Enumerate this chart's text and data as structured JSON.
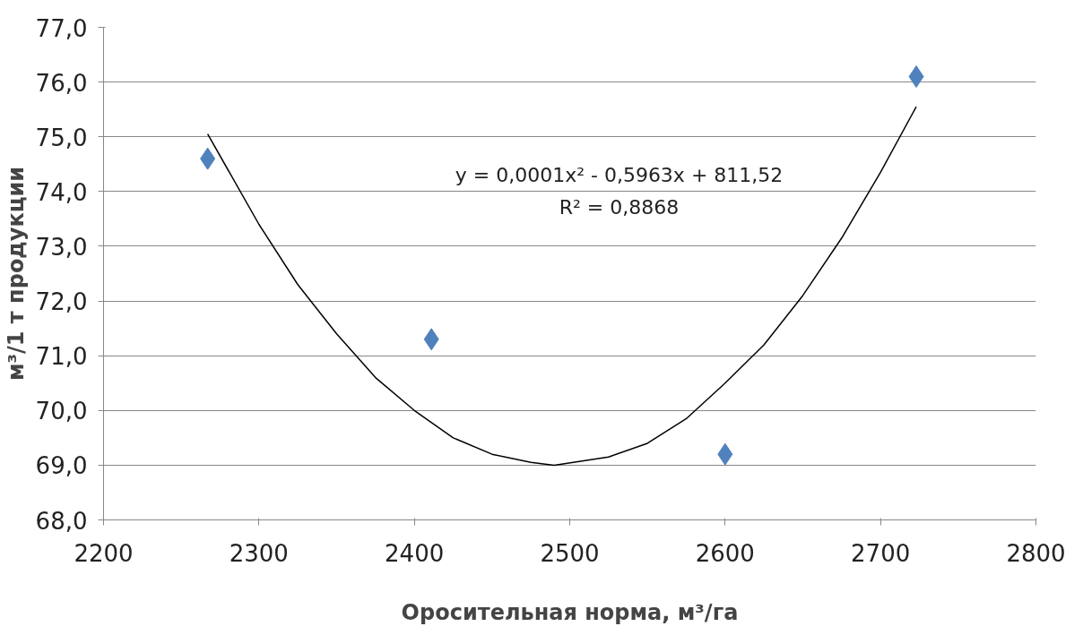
{
  "chart_data": {
    "type": "scatter",
    "xlabel": "Оросительная норма, м³/га",
    "ylabel": "м³/1 т продукции",
    "x": [
      2267,
      2411,
      2600,
      2723
    ],
    "series": [
      {
        "color": "#4f81bd",
        "marker": "diamond",
        "values": [
          74.6,
          71.3,
          69.2,
          76.1
        ]
      },
      {
        "type": "line",
        "color": "#000000",
        "marker": "none",
        "line_style": "solid",
        "x": [
          2267,
          2300,
          2325,
          2350,
          2375,
          2400,
          2425,
          2450,
          2475,
          2490,
          2525,
          2550,
          2575,
          2600,
          2625,
          2650,
          2675,
          2700,
          2723
        ],
        "values": [
          75.05,
          73.4,
          72.3,
          71.4,
          70.6,
          70.0,
          69.5,
          69.2,
          69.05,
          69.0,
          69.15,
          69.4,
          69.85,
          70.5,
          71.2,
          72.1,
          73.15,
          74.35,
          75.55
        ]
      }
    ],
    "annotations": [
      "y = 0,0001x² - 0,5963x + 811,52",
      "R² = 0,8868"
    ],
    "xlim": [
      2200,
      2800
    ],
    "xticks": [
      2200,
      2300,
      2400,
      2500,
      2600,
      2700,
      2800
    ],
    "ylim": [
      68,
      77
    ],
    "yticks": [
      {
        "value": 68,
        "label": "68,0"
      },
      {
        "value": 69,
        "label": "69,0"
      },
      {
        "value": 70,
        "label": "70,0"
      },
      {
        "value": 71,
        "label": "71,0"
      },
      {
        "value": 72,
        "label": "72,0"
      },
      {
        "value": 73,
        "label": "73,0"
      },
      {
        "value": 74,
        "label": "74,0"
      },
      {
        "value": 75,
        "label": "75,0"
      },
      {
        "value": 76,
        "label": "76,0"
      },
      {
        "value": 77,
        "label": "77,0"
      }
    ],
    "grid": "y"
  }
}
